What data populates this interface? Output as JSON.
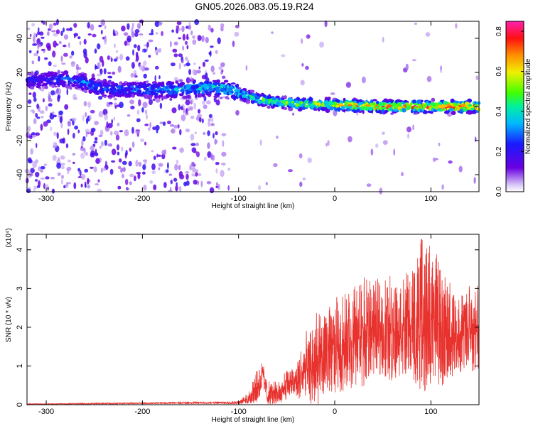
{
  "title": "GN05.2026.083.05.19.R24",
  "colors": {
    "snr_line": "#e8322e",
    "spectrum_base": "#8a3cf0",
    "axis": "#000000"
  },
  "colorbar": {
    "label": "Normalized spectral amplitude",
    "range": [
      0.0,
      0.85
    ],
    "ticks": [
      0.0,
      0.2,
      0.4,
      0.6,
      0.8
    ],
    "tick_labels": [
      "0.0",
      "0.2",
      "0.4",
      "0.6",
      "0.8"
    ],
    "colormap": "rainbow (purple → blue → cyan → green → yellow → orange → red → magenta)"
  },
  "chart_data": [
    {
      "type": "heatmap",
      "xlabel": "Height of straight line (km)",
      "ylabel": "Frequency (Hz)",
      "xlim": [
        -320,
        150
      ],
      "ylim": [
        -50,
        50
      ],
      "xticks": [
        -300,
        -200,
        -100,
        0,
        100
      ],
      "xtick_labels": [
        "-300",
        "-200",
        "-100",
        "0",
        "100"
      ],
      "yticks": [
        -40,
        -20,
        0,
        20,
        40
      ],
      "ytick_labels": [
        "-40",
        "-20",
        "0",
        "20",
        "40"
      ],
      "grid": false,
      "description_points": {
        "x": [
          -320,
          -280,
          -260,
          -240,
          -200,
          -160,
          -130,
          -110,
          -100,
          -80,
          -50,
          0,
          50,
          100,
          150
        ],
        "center_frequency": [
          15,
          16,
          14,
          10,
          10,
          10,
          11,
          10,
          8,
          4,
          2,
          1,
          0,
          0,
          0
        ],
        "peak_amplitude": [
          0.25,
          0.3,
          0.35,
          0.3,
          0.35,
          0.4,
          0.45,
          0.45,
          0.5,
          0.55,
          0.6,
          0.7,
          0.8,
          0.85,
          0.85
        ]
      }
    },
    {
      "type": "line",
      "xlabel": "Height of straight line (km)",
      "ylabel": "SNR (10 * v/v)",
      "y_multiplier_label": "(x10⁴)",
      "xlim": [
        -320,
        150
      ],
      "ylim": [
        0,
        4.4
      ],
      "xticks": [
        -300,
        -200,
        -100,
        0,
        100
      ],
      "xtick_labels": [
        "-300",
        "-200",
        "-100",
        "0",
        "100"
      ],
      "yticks": [
        0,
        1,
        2,
        3,
        4
      ],
      "ytick_labels": [
        "0",
        "1",
        "2",
        "3",
        "4"
      ],
      "grid": false,
      "series": [
        {
          "x": [
            -320,
            -300,
            -250,
            -200,
            -150,
            -120,
            -100,
            -90,
            -80,
            -75,
            -70,
            -60,
            -50,
            -40,
            -30,
            -20,
            -10,
            0,
            10,
            20,
            30,
            40,
            50,
            60,
            70,
            80,
            90,
            100,
            110,
            120,
            130,
            140,
            150
          ],
          "values": [
            0.02,
            0.02,
            0.03,
            0.04,
            0.05,
            0.05,
            0.06,
            0.15,
            0.5,
            0.8,
            0.3,
            0.3,
            0.5,
            0.65,
            0.9,
            1.0,
            1.3,
            1.5,
            1.6,
            1.7,
            1.85,
            1.95,
            2.0,
            2.0,
            2.05,
            2.1,
            2.2,
            2.3,
            2.0,
            1.9,
            1.8,
            1.9,
            2.0
          ],
          "envelope_max": [
            0.03,
            0.03,
            0.05,
            0.06,
            0.08,
            0.08,
            0.1,
            0.3,
            1.0,
            1.1,
            0.6,
            0.6,
            0.9,
            1.1,
            1.9,
            2.4,
            2.3,
            2.8,
            2.9,
            3.1,
            3.3,
            3.2,
            3.3,
            3.5,
            3.4,
            3.5,
            4.3,
            4.2,
            3.7,
            3.2,
            2.8,
            3.1,
            3.2
          ]
        }
      ]
    }
  ]
}
